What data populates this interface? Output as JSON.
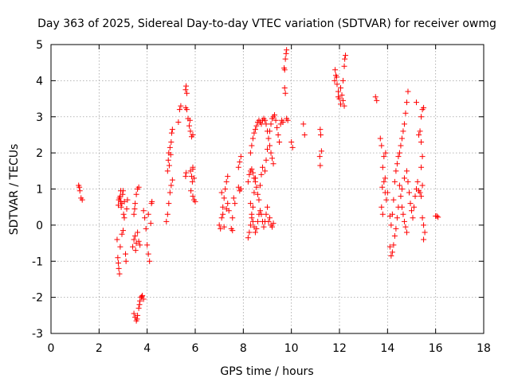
{
  "chart_data": {
    "type": "scatter",
    "title": "Day 363 of 2025, Sidereal Day-to-day VTEC variation (SDTVAR) for receiver owmg",
    "xlabel": "GPS time / hours",
    "ylabel": "SDTVAR / TECUs",
    "xlim": [
      0,
      18
    ],
    "ylim": [
      -3,
      5
    ],
    "xticks": [
      "0",
      "2",
      "4",
      "6",
      "8",
      "10",
      "12",
      "14",
      "16",
      "18"
    ],
    "yticks": [
      "-3",
      "-2",
      "-1",
      "0",
      "1",
      "2",
      "3",
      "4",
      "5"
    ],
    "grid": true,
    "marker": "plus",
    "color": "#ff0000",
    "series": [
      {
        "name": "SDTVAR",
        "points": [
          [
            1.15,
            1.1
          ],
          [
            1.18,
            1.05
          ],
          [
            1.2,
            0.95
          ],
          [
            1.25,
            0.75
          ],
          [
            1.3,
            0.7
          ],
          [
            2.75,
            -0.4
          ],
          [
            2.78,
            -0.9
          ],
          [
            2.8,
            -1.05
          ],
          [
            2.82,
            -1.2
          ],
          [
            2.85,
            -1.35
          ],
          [
            2.8,
            0.55
          ],
          [
            2.82,
            0.7
          ],
          [
            2.85,
            0.75
          ],
          [
            2.88,
            0.8
          ],
          [
            2.9,
            0.65
          ],
          [
            2.92,
            0.5
          ],
          [
            2.95,
            0.6
          ],
          [
            2.98,
            0.85
          ],
          [
            3.0,
            0.95
          ],
          [
            3.02,
            0.3
          ],
          [
            3.05,
            0.2
          ],
          [
            3.1,
            -0.8
          ],
          [
            3.12,
            -1.0
          ],
          [
            3.15,
            0.45
          ],
          [
            3.18,
            0.7
          ],
          [
            2.95,
            -0.25
          ],
          [
            3.0,
            -0.15
          ],
          [
            2.9,
            0.95
          ],
          [
            3.05,
            0.65
          ],
          [
            2.88,
            -0.6
          ],
          [
            3.45,
            -2.45
          ],
          [
            3.5,
            -2.55
          ],
          [
            3.55,
            -2.65
          ],
          [
            3.6,
            -2.5
          ],
          [
            3.65,
            -2.3
          ],
          [
            3.7,
            -2.1
          ],
          [
            3.75,
            -2.0
          ],
          [
            3.8,
            -1.95
          ],
          [
            3.85,
            -2.05
          ],
          [
            3.58,
            -2.6
          ],
          [
            3.68,
            -2.2
          ],
          [
            3.78,
            -1.98
          ],
          [
            3.4,
            -0.6
          ],
          [
            3.45,
            -0.4
          ],
          [
            3.5,
            -0.3
          ],
          [
            3.55,
            -0.5
          ],
          [
            3.6,
            -0.2
          ],
          [
            3.65,
            -0.45
          ],
          [
            3.7,
            -0.55
          ],
          [
            3.45,
            0.3
          ],
          [
            3.5,
            0.6
          ],
          [
            3.55,
            0.85
          ],
          [
            3.6,
            1.0
          ],
          [
            3.65,
            1.05
          ],
          [
            3.48,
            0.45
          ],
          [
            3.52,
            -0.7
          ],
          [
            3.85,
            0.4
          ],
          [
            3.9,
            0.2
          ],
          [
            3.95,
            -0.1
          ],
          [
            4.0,
            -0.55
          ],
          [
            4.05,
            -0.8
          ],
          [
            4.1,
            -1.0
          ],
          [
            4.15,
            0.05
          ],
          [
            4.18,
            0.6
          ],
          [
            4.2,
            0.65
          ],
          [
            4.05,
            0.3
          ],
          [
            4.8,
            0.1
          ],
          [
            4.85,
            0.3
          ],
          [
            4.9,
            0.6
          ],
          [
            4.95,
            0.9
          ],
          [
            5.0,
            1.1
          ],
          [
            5.05,
            1.25
          ],
          [
            4.85,
            1.5
          ],
          [
            4.88,
            1.8
          ],
          [
            4.9,
            2.0
          ],
          [
            4.95,
            2.15
          ],
          [
            5.0,
            2.3
          ],
          [
            5.02,
            2.55
          ],
          [
            5.05,
            2.65
          ],
          [
            4.92,
            1.65
          ],
          [
            4.98,
            1.95
          ],
          [
            5.3,
            2.85
          ],
          [
            5.35,
            3.2
          ],
          [
            5.4,
            3.3
          ],
          [
            5.6,
            3.75
          ],
          [
            5.62,
            3.85
          ],
          [
            5.65,
            3.65
          ],
          [
            5.6,
            3.25
          ],
          [
            5.65,
            3.2
          ],
          [
            5.6,
            1.35
          ],
          [
            5.62,
            1.45
          ],
          [
            5.7,
            2.95
          ],
          [
            5.75,
            2.75
          ],
          [
            5.8,
            2.6
          ],
          [
            5.85,
            2.45
          ],
          [
            5.9,
            2.5
          ],
          [
            5.78,
            2.9
          ],
          [
            5.8,
            1.5
          ],
          [
            5.85,
            1.35
          ],
          [
            5.88,
            1.2
          ],
          [
            5.9,
            0.8
          ],
          [
            5.95,
            0.7
          ],
          [
            6.0,
            0.65
          ],
          [
            5.9,
            1.55
          ],
          [
            5.95,
            1.3
          ],
          [
            5.82,
            0.95
          ],
          [
            5.9,
            1.6
          ],
          [
            7.0,
            0.0
          ],
          [
            7.05,
            -0.1
          ],
          [
            7.1,
            0.2
          ],
          [
            7.15,
            0.5
          ],
          [
            7.2,
            0.75
          ],
          [
            7.25,
            1.0
          ],
          [
            7.3,
            1.2
          ],
          [
            7.35,
            1.35
          ],
          [
            7.1,
            0.9
          ],
          [
            7.15,
            0.3
          ],
          [
            7.2,
            -0.05
          ],
          [
            7.3,
            0.45
          ],
          [
            7.35,
            0.6
          ],
          [
            7.4,
            0.4
          ],
          [
            7.5,
            -0.1
          ],
          [
            7.55,
            -0.15
          ],
          [
            7.6,
            0.75
          ],
          [
            7.65,
            0.6
          ],
          [
            7.55,
            0.2
          ],
          [
            7.8,
            1.05
          ],
          [
            7.85,
            0.95
          ],
          [
            7.9,
            1.0
          ],
          [
            7.8,
            1.6
          ],
          [
            7.85,
            1.75
          ],
          [
            7.9,
            1.9
          ],
          [
            8.2,
            -0.35
          ],
          [
            8.25,
            -0.2
          ],
          [
            8.3,
            0.0
          ],
          [
            8.35,
            0.2
          ],
          [
            8.4,
            0.5
          ],
          [
            8.45,
            0.9
          ],
          [
            8.5,
            1.3
          ],
          [
            8.2,
            1.2
          ],
          [
            8.25,
            1.4
          ],
          [
            8.3,
            1.5
          ],
          [
            8.35,
            1.55
          ],
          [
            8.4,
            1.45
          ],
          [
            8.45,
            1.3
          ],
          [
            8.5,
            1.2
          ],
          [
            8.55,
            1.05
          ],
          [
            8.6,
            0.85
          ],
          [
            8.65,
            0.7
          ],
          [
            8.7,
            1.1
          ],
          [
            8.75,
            1.4
          ],
          [
            8.8,
            1.6
          ],
          [
            8.3,
            2.0
          ],
          [
            8.35,
            2.2
          ],
          [
            8.4,
            2.4
          ],
          [
            8.45,
            2.55
          ],
          [
            8.5,
            2.65
          ],
          [
            8.55,
            2.75
          ],
          [
            8.6,
            2.85
          ],
          [
            8.65,
            2.9
          ],
          [
            8.7,
            2.85
          ],
          [
            8.75,
            2.8
          ],
          [
            8.8,
            2.9
          ],
          [
            8.85,
            2.95
          ],
          [
            8.9,
            2.9
          ],
          [
            8.95,
            2.8
          ],
          [
            9.0,
            2.6
          ],
          [
            9.05,
            2.4
          ],
          [
            9.1,
            2.2
          ],
          [
            9.15,
            2.0
          ],
          [
            9.2,
            1.85
          ],
          [
            9.25,
            1.7
          ],
          [
            8.3,
            0.6
          ],
          [
            8.35,
            0.3
          ],
          [
            8.4,
            0.1
          ],
          [
            8.45,
            -0.05
          ],
          [
            8.5,
            -0.2
          ],
          [
            8.55,
            -0.1
          ],
          [
            8.6,
            0.1
          ],
          [
            8.65,
            0.3
          ],
          [
            8.7,
            0.4
          ],
          [
            8.75,
            0.3
          ],
          [
            8.8,
            0.1
          ],
          [
            8.85,
            -0.05
          ],
          [
            8.9,
            0.1
          ],
          [
            8.95,
            0.3
          ],
          [
            9.0,
            0.5
          ],
          [
            9.05,
            0.1
          ],
          [
            9.1,
            0.2
          ],
          [
            9.15,
            0.0
          ],
          [
            9.2,
            -0.05
          ],
          [
            9.25,
            0.05
          ],
          [
            8.9,
            1.5
          ],
          [
            8.95,
            1.8
          ],
          [
            9.0,
            2.1
          ],
          [
            9.05,
            2.4
          ],
          [
            9.1,
            2.6
          ],
          [
            9.15,
            2.8
          ],
          [
            9.2,
            2.95
          ],
          [
            9.25,
            3.0
          ],
          [
            9.3,
            3.05
          ],
          [
            9.35,
            2.9
          ],
          [
            9.4,
            2.7
          ],
          [
            9.45,
            2.5
          ],
          [
            9.5,
            2.3
          ],
          [
            9.55,
            2.8
          ],
          [
            9.6,
            2.9
          ],
          [
            9.65,
            2.85
          ],
          [
            9.7,
            4.35
          ],
          [
            9.72,
            4.3
          ],
          [
            9.75,
            4.6
          ],
          [
            9.78,
            4.75
          ],
          [
            9.8,
            4.85
          ],
          [
            9.72,
            3.8
          ],
          [
            9.75,
            3.65
          ],
          [
            9.8,
            2.95
          ],
          [
            9.85,
            2.9
          ],
          [
            10.0,
            2.3
          ],
          [
            10.05,
            2.15
          ],
          [
            10.5,
            2.8
          ],
          [
            10.55,
            2.5
          ],
          [
            11.2,
            2.65
          ],
          [
            11.22,
            2.5
          ],
          [
            11.25,
            2.05
          ],
          [
            11.18,
            1.9
          ],
          [
            11.2,
            1.65
          ],
          [
            11.8,
            4.0
          ],
          [
            11.85,
            4.15
          ],
          [
            11.9,
            3.9
          ],
          [
            11.95,
            3.7
          ],
          [
            12.0,
            3.5
          ],
          [
            12.05,
            3.35
          ],
          [
            12.1,
            3.6
          ],
          [
            12.15,
            4.0
          ],
          [
            12.2,
            4.4
          ],
          [
            12.25,
            4.7
          ],
          [
            11.82,
            4.3
          ],
          [
            11.88,
            4.1
          ],
          [
            11.95,
            3.55
          ],
          [
            12.05,
            3.8
          ],
          [
            12.15,
            3.45
          ],
          [
            12.2,
            3.3
          ],
          [
            12.22,
            4.6
          ],
          [
            13.5,
            3.55
          ],
          [
            13.55,
            3.45
          ],
          [
            13.7,
            2.4
          ],
          [
            13.75,
            2.2
          ],
          [
            13.8,
            1.6
          ],
          [
            13.85,
            1.2
          ],
          [
            13.9,
            0.9
          ],
          [
            13.95,
            0.7
          ],
          [
            14.0,
            0.9
          ],
          [
            13.75,
            0.5
          ],
          [
            13.8,
            0.3
          ],
          [
            13.85,
            1.9
          ],
          [
            13.78,
            1.05
          ],
          [
            13.9,
            1.3
          ],
          [
            13.92,
            2.0
          ],
          [
            14.1,
            -0.6
          ],
          [
            14.15,
            -0.85
          ],
          [
            14.2,
            -0.75
          ],
          [
            14.25,
            -0.55
          ],
          [
            14.3,
            -0.3
          ],
          [
            14.35,
            -0.1
          ],
          [
            14.4,
            0.2
          ],
          [
            14.45,
            0.5
          ],
          [
            14.1,
            0.25
          ],
          [
            14.15,
            0.0
          ],
          [
            14.2,
            0.3
          ],
          [
            14.25,
            0.7
          ],
          [
            14.3,
            1.2
          ],
          [
            14.35,
            1.5
          ],
          [
            14.4,
            1.7
          ],
          [
            14.45,
            1.9
          ],
          [
            14.5,
            2.0
          ],
          [
            14.55,
            2.2
          ],
          [
            14.6,
            2.4
          ],
          [
            14.65,
            2.6
          ],
          [
            14.7,
            2.8
          ],
          [
            14.75,
            3.1
          ],
          [
            14.8,
            3.4
          ],
          [
            14.85,
            3.7
          ],
          [
            14.5,
            1.1
          ],
          [
            14.55,
            0.8
          ],
          [
            14.6,
            0.5
          ],
          [
            14.65,
            0.3
          ],
          [
            14.7,
            0.1
          ],
          [
            14.75,
            -0.05
          ],
          [
            14.8,
            -0.2
          ],
          [
            14.6,
            1.0
          ],
          [
            14.7,
            1.3
          ],
          [
            14.8,
            1.5
          ],
          [
            14.85,
            1.2
          ],
          [
            14.9,
            0.9
          ],
          [
            14.95,
            0.6
          ],
          [
            15.0,
            0.4
          ],
          [
            15.05,
            0.2
          ],
          [
            15.1,
            0.5
          ],
          [
            15.15,
            0.8
          ],
          [
            15.2,
            1.0
          ],
          [
            15.25,
            1.2
          ],
          [
            15.3,
            0.95
          ],
          [
            15.2,
            3.4
          ],
          [
            15.3,
            2.5
          ],
          [
            15.35,
            2.6
          ],
          [
            15.4,
            3.0
          ],
          [
            15.45,
            3.2
          ],
          [
            15.5,
            3.25
          ],
          [
            15.45,
            1.9
          ],
          [
            15.4,
            1.6
          ],
          [
            15.35,
            0.9
          ],
          [
            15.4,
            0.8
          ],
          [
            15.45,
            0.2
          ],
          [
            15.5,
            0.0
          ],
          [
            15.55,
            -0.2
          ],
          [
            15.5,
            -0.4
          ],
          [
            15.45,
            1.1
          ],
          [
            15.4,
            2.3
          ],
          [
            16.0,
            0.25
          ],
          [
            16.05,
            0.25
          ],
          [
            16.1,
            0.22
          ]
        ]
      }
    ]
  }
}
